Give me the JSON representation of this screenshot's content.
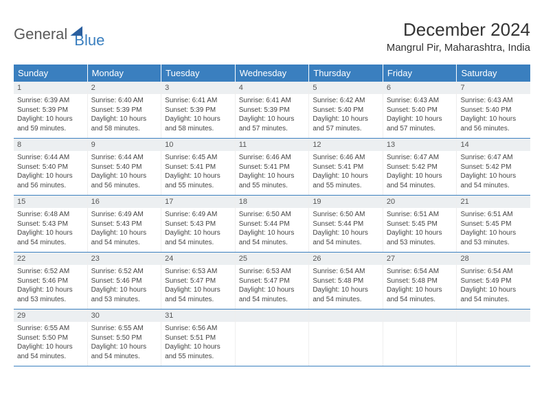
{
  "logo": {
    "part1": "General",
    "part2": "Blue"
  },
  "title": "December 2024",
  "location": "Mangrul Pir, Maharashtra, India",
  "colors": {
    "header_bg": "#3a7fbf",
    "daynum_bg": "#eceff1"
  },
  "weekdays": [
    "Sunday",
    "Monday",
    "Tuesday",
    "Wednesday",
    "Thursday",
    "Friday",
    "Saturday"
  ],
  "weeks": [
    [
      {
        "n": "1",
        "sunrise": "6:39 AM",
        "sunset": "5:39 PM",
        "daylight": "10 hours and 59 minutes."
      },
      {
        "n": "2",
        "sunrise": "6:40 AM",
        "sunset": "5:39 PM",
        "daylight": "10 hours and 58 minutes."
      },
      {
        "n": "3",
        "sunrise": "6:41 AM",
        "sunset": "5:39 PM",
        "daylight": "10 hours and 58 minutes."
      },
      {
        "n": "4",
        "sunrise": "6:41 AM",
        "sunset": "5:39 PM",
        "daylight": "10 hours and 57 minutes."
      },
      {
        "n": "5",
        "sunrise": "6:42 AM",
        "sunset": "5:40 PM",
        "daylight": "10 hours and 57 minutes."
      },
      {
        "n": "6",
        "sunrise": "6:43 AM",
        "sunset": "5:40 PM",
        "daylight": "10 hours and 57 minutes."
      },
      {
        "n": "7",
        "sunrise": "6:43 AM",
        "sunset": "5:40 PM",
        "daylight": "10 hours and 56 minutes."
      }
    ],
    [
      {
        "n": "8",
        "sunrise": "6:44 AM",
        "sunset": "5:40 PM",
        "daylight": "10 hours and 56 minutes."
      },
      {
        "n": "9",
        "sunrise": "6:44 AM",
        "sunset": "5:40 PM",
        "daylight": "10 hours and 56 minutes."
      },
      {
        "n": "10",
        "sunrise": "6:45 AM",
        "sunset": "5:41 PM",
        "daylight": "10 hours and 55 minutes."
      },
      {
        "n": "11",
        "sunrise": "6:46 AM",
        "sunset": "5:41 PM",
        "daylight": "10 hours and 55 minutes."
      },
      {
        "n": "12",
        "sunrise": "6:46 AM",
        "sunset": "5:41 PM",
        "daylight": "10 hours and 55 minutes."
      },
      {
        "n": "13",
        "sunrise": "6:47 AM",
        "sunset": "5:42 PM",
        "daylight": "10 hours and 54 minutes."
      },
      {
        "n": "14",
        "sunrise": "6:47 AM",
        "sunset": "5:42 PM",
        "daylight": "10 hours and 54 minutes."
      }
    ],
    [
      {
        "n": "15",
        "sunrise": "6:48 AM",
        "sunset": "5:43 PM",
        "daylight": "10 hours and 54 minutes."
      },
      {
        "n": "16",
        "sunrise": "6:49 AM",
        "sunset": "5:43 PM",
        "daylight": "10 hours and 54 minutes."
      },
      {
        "n": "17",
        "sunrise": "6:49 AM",
        "sunset": "5:43 PM",
        "daylight": "10 hours and 54 minutes."
      },
      {
        "n": "18",
        "sunrise": "6:50 AM",
        "sunset": "5:44 PM",
        "daylight": "10 hours and 54 minutes."
      },
      {
        "n": "19",
        "sunrise": "6:50 AM",
        "sunset": "5:44 PM",
        "daylight": "10 hours and 54 minutes."
      },
      {
        "n": "20",
        "sunrise": "6:51 AM",
        "sunset": "5:45 PM",
        "daylight": "10 hours and 53 minutes."
      },
      {
        "n": "21",
        "sunrise": "6:51 AM",
        "sunset": "5:45 PM",
        "daylight": "10 hours and 53 minutes."
      }
    ],
    [
      {
        "n": "22",
        "sunrise": "6:52 AM",
        "sunset": "5:46 PM",
        "daylight": "10 hours and 53 minutes."
      },
      {
        "n": "23",
        "sunrise": "6:52 AM",
        "sunset": "5:46 PM",
        "daylight": "10 hours and 53 minutes."
      },
      {
        "n": "24",
        "sunrise": "6:53 AM",
        "sunset": "5:47 PM",
        "daylight": "10 hours and 54 minutes."
      },
      {
        "n": "25",
        "sunrise": "6:53 AM",
        "sunset": "5:47 PM",
        "daylight": "10 hours and 54 minutes."
      },
      {
        "n": "26",
        "sunrise": "6:54 AM",
        "sunset": "5:48 PM",
        "daylight": "10 hours and 54 minutes."
      },
      {
        "n": "27",
        "sunrise": "6:54 AM",
        "sunset": "5:48 PM",
        "daylight": "10 hours and 54 minutes."
      },
      {
        "n": "28",
        "sunrise": "6:54 AM",
        "sunset": "5:49 PM",
        "daylight": "10 hours and 54 minutes."
      }
    ],
    [
      {
        "n": "29",
        "sunrise": "6:55 AM",
        "sunset": "5:50 PM",
        "daylight": "10 hours and 54 minutes."
      },
      {
        "n": "30",
        "sunrise": "6:55 AM",
        "sunset": "5:50 PM",
        "daylight": "10 hours and 54 minutes."
      },
      {
        "n": "31",
        "sunrise": "6:56 AM",
        "sunset": "5:51 PM",
        "daylight": "10 hours and 55 minutes."
      },
      {
        "empty": true
      },
      {
        "empty": true
      },
      {
        "empty": true
      },
      {
        "empty": true
      }
    ]
  ],
  "labels": {
    "sunrise": "Sunrise:",
    "sunset": "Sunset:",
    "daylight": "Daylight:"
  }
}
